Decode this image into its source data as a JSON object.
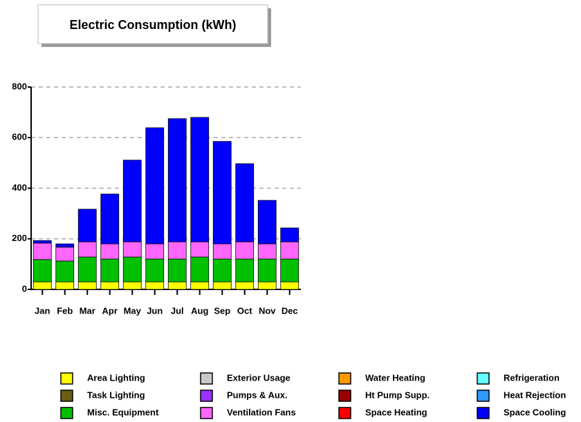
{
  "chart_data": {
    "type": "stacked_bar",
    "title": "Electric Consumption (kWh)",
    "categories": [
      "Jan",
      "Feb",
      "Mar",
      "Apr",
      "May",
      "Jun",
      "Jul",
      "Aug",
      "Sep",
      "Oct",
      "Nov",
      "Dec"
    ],
    "ylim": [
      0,
      800
    ],
    "yticks": [
      0,
      200,
      400,
      600,
      800
    ],
    "grid": true,
    "series": [
      {
        "name": "Area Lighting",
        "color": "#ffff00",
        "values": [
          30,
          30,
          30,
          30,
          30,
          30,
          30,
          30,
          30,
          30,
          30,
          30
        ]
      },
      {
        "name": "Task Lighting",
        "color": "#6b5e12",
        "values": [
          0,
          0,
          0,
          0,
          0,
          0,
          0,
          0,
          0,
          0,
          0,
          0
        ]
      },
      {
        "name": "Misc. Equipment",
        "color": "#00c000",
        "values": [
          88,
          82,
          98,
          90,
          98,
          90,
          90,
          98,
          90,
          90,
          90,
          90
        ]
      },
      {
        "name": "Exterior Usage",
        "color": "#c8c8c8",
        "values": [
          0,
          0,
          0,
          0,
          0,
          0,
          0,
          0,
          0,
          0,
          0,
          0
        ]
      },
      {
        "name": "Pumps & Aux.",
        "color": "#9933ff",
        "values": [
          0,
          0,
          0,
          0,
          0,
          0,
          0,
          0,
          0,
          0,
          0,
          0
        ]
      },
      {
        "name": "Ventilation Fans",
        "color": "#ff66ff",
        "values": [
          65,
          55,
          60,
          60,
          60,
          60,
          68,
          60,
          60,
          68,
          60,
          68
        ]
      },
      {
        "name": "Water Heating",
        "color": "#ff9900",
        "values": [
          0,
          0,
          0,
          0,
          0,
          0,
          0,
          0,
          0,
          0,
          0,
          0
        ]
      },
      {
        "name": "Ht Pump Supp.",
        "color": "#990000",
        "values": [
          0,
          0,
          0,
          0,
          0,
          0,
          0,
          0,
          0,
          0,
          0,
          0
        ]
      },
      {
        "name": "Space Heating",
        "color": "#ff0000",
        "values": [
          0,
          0,
          0,
          0,
          0,
          0,
          0,
          0,
          0,
          0,
          0,
          0
        ]
      },
      {
        "name": "Refrigeration",
        "color": "#66ffff",
        "values": [
          0,
          0,
          0,
          0,
          0,
          0,
          0,
          0,
          0,
          0,
          0,
          0
        ]
      },
      {
        "name": "Heat Rejection",
        "color": "#3399ff",
        "values": [
          0,
          0,
          0,
          0,
          0,
          0,
          0,
          0,
          0,
          0,
          0,
          0
        ]
      },
      {
        "name": "Space Cooling",
        "color": "#0000ff",
        "values": [
          10,
          13,
          129,
          197,
          323,
          459,
          487,
          492,
          405,
          309,
          172,
          55
        ]
      }
    ]
  }
}
